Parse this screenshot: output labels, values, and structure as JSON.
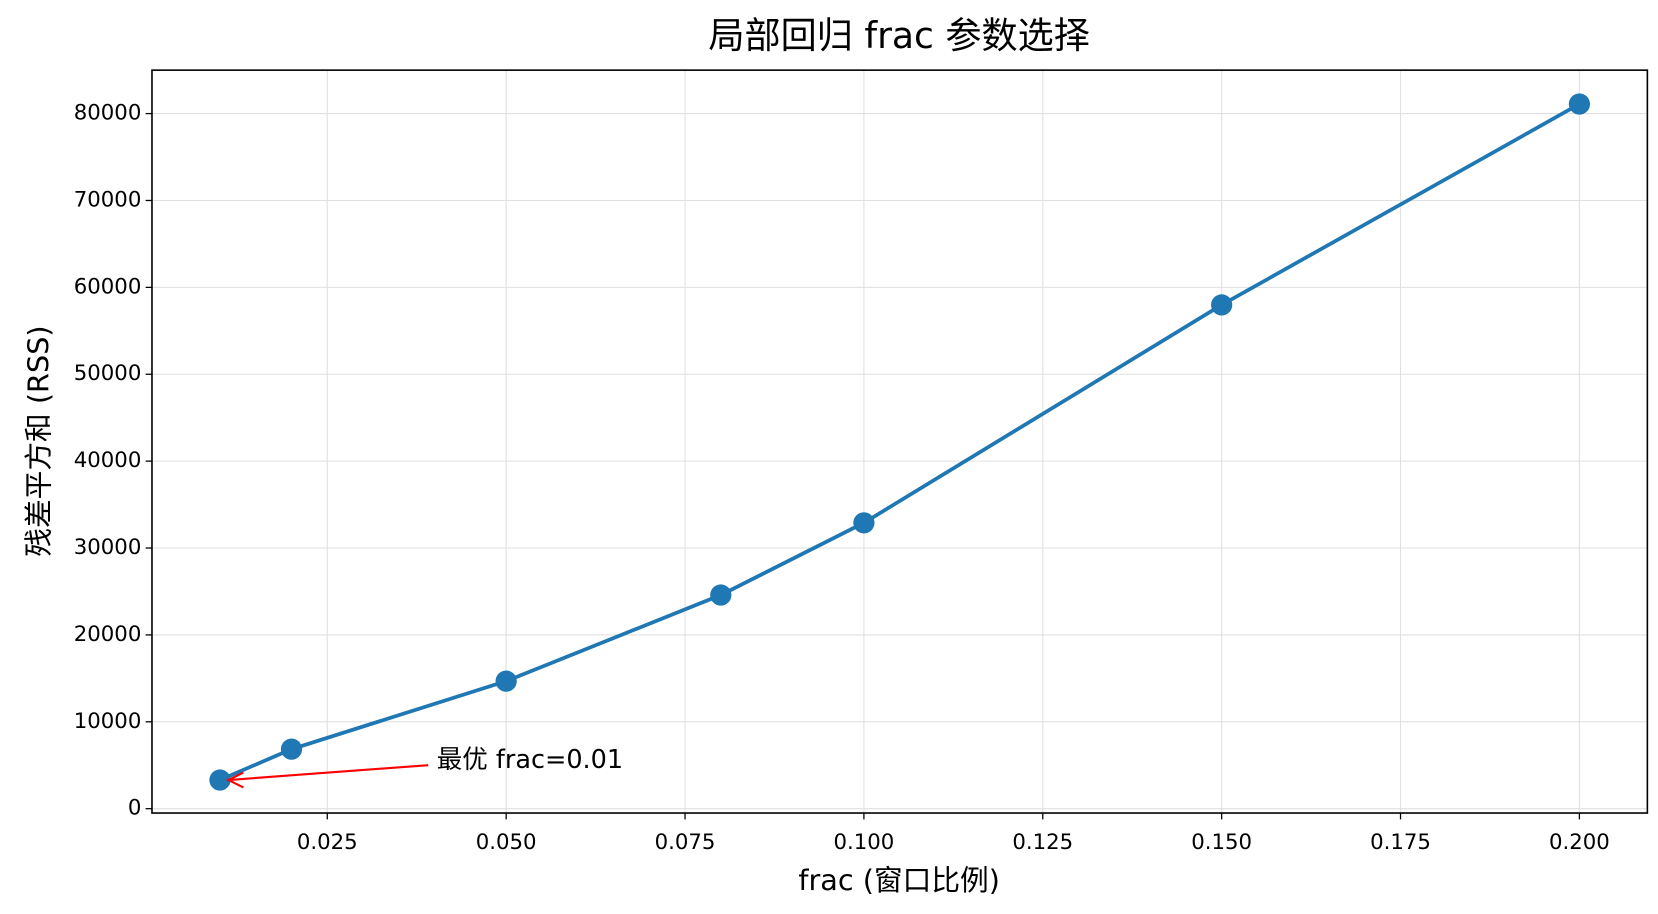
{
  "chart_data": {
    "type": "line",
    "title": "局部回归 frac 参数选择",
    "xlabel": "frac (窗口比例)",
    "ylabel": "残差平方和 (RSS)",
    "x": [
      0.01,
      0.02,
      0.05,
      0.08,
      0.1,
      0.15,
      0.2
    ],
    "series": [
      {
        "name": "RSS",
        "color": "#1f77b4",
        "values": [
          3300,
          6850,
          14680,
          24590,
          32900,
          57980,
          81100
        ]
      }
    ],
    "xlim": [
      0.0005,
      0.2095
    ],
    "ylim": [
      -500,
      85000
    ],
    "xticks": [
      0.025,
      {
        "value": 0.05,
        "label": "0.050"
      },
      0.075,
      {
        "value": 0.1,
        "label": "0.100"
      },
      0.125,
      {
        "value": 0.15,
        "label": "0.150"
      },
      0.175,
      {
        "value": 0.2,
        "label": "0.200"
      }
    ],
    "yticks": [
      0,
      10000,
      20000,
      30000,
      40000,
      50000,
      60000,
      70000,
      80000
    ],
    "grid": true,
    "annotation": {
      "text": "最优 frac=0.01",
      "color": "#ff0000"
    }
  }
}
